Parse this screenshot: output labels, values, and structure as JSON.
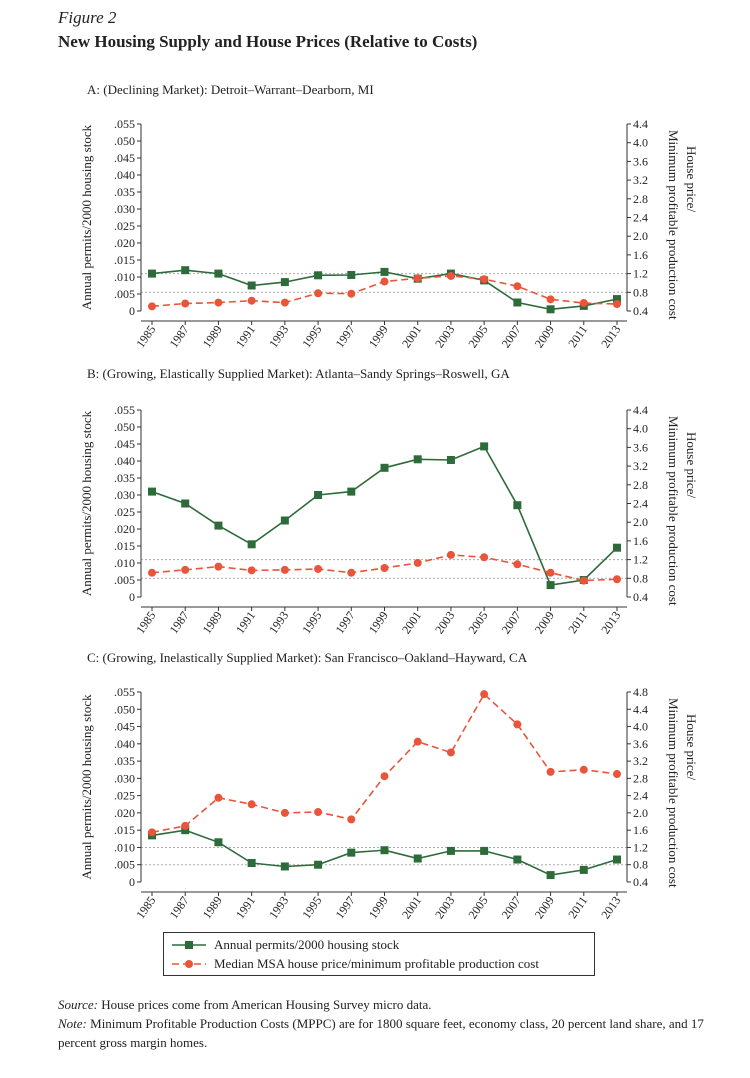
{
  "figure_label": "Figure 2",
  "title": "New Housing Supply and House Prices (Relative to Costs)",
  "colors": {
    "permits": "#2e6b3a",
    "price": "#e8553a",
    "reference": "#aaaaaa"
  },
  "legend": {
    "permits": "Annual permits/2000 housing stock",
    "price": "Median MSA house price/minimum profitable production cost"
  },
  "source_label": "Source:",
  "source_text": "House prices come from American Housing Survey micro data.",
  "note_label": "Note:",
  "note_text": "Minimum Profitable Production Costs (MPPC) are for 1800 square feet, economy class, 20 percent land share, and 17 percent gross margin homes.",
  "chart_data": [
    {
      "type": "line",
      "panel_title": "A: (Declining Market): Detroit–Warrant–Dearborn, MI",
      "ylabel_left": "Annual permits/2000 housing stock",
      "ylabel_right": "House price/Minimum profitable production cost",
      "x": [
        "1985",
        "1987",
        "1989",
        "1991",
        "1993",
        "1995",
        "1997",
        "1999",
        "2001",
        "2003",
        "2005",
        "2007",
        "2009",
        "2011",
        "2013"
      ],
      "yticks_left": [
        "0",
        ".005",
        ".010",
        ".015",
        ".020",
        ".025",
        ".030",
        ".035",
        ".040",
        ".045",
        ".050",
        ".055"
      ],
      "yticks_right": [
        "0.4",
        "0.8",
        "1.2",
        "1.6",
        "2.0",
        "2.4",
        "2.8",
        "3.2",
        "3.6",
        "4.0",
        "4.4"
      ],
      "ylim_left": [
        0,
        0.055
      ],
      "ylim_right": [
        0.4,
        4.4
      ],
      "reference_lines_right": [
        0.8,
        1.2
      ],
      "series": [
        {
          "name": "Annual permits/2000 housing stock",
          "axis": "left",
          "values": [
            0.011,
            0.012,
            0.011,
            0.0075,
            0.0085,
            0.0105,
            0.0106,
            0.0115,
            0.0095,
            0.011,
            0.009,
            0.0025,
            0.0005,
            0.0015,
            0.0035
          ]
        },
        {
          "name": "Median MSA house price/minimum profitable production cost",
          "axis": "right",
          "values": [
            0.5,
            0.56,
            0.58,
            0.62,
            0.58,
            0.78,
            0.77,
            1.03,
            1.1,
            1.15,
            1.08,
            0.93,
            0.65,
            0.57,
            0.55
          ]
        }
      ]
    },
    {
      "type": "line",
      "panel_title": "B: (Growing, Elastically Supplied Market): Atlanta–Sandy Springs–Roswell, GA",
      "ylabel_left": "Annual permits/2000 housing stock",
      "ylabel_right": "House price/Minimum profitable production cost",
      "x": [
        "1985",
        "1987",
        "1989",
        "1991",
        "1993",
        "1995",
        "1997",
        "1999",
        "2001",
        "2003",
        "2005",
        "2007",
        "2009",
        "2011",
        "2013"
      ],
      "yticks_left": [
        "0",
        ".005",
        ".010",
        ".015",
        ".020",
        ".025",
        ".030",
        ".035",
        ".040",
        ".045",
        ".050",
        ".055"
      ],
      "yticks_right": [
        "0.4",
        "0.8",
        "1.2",
        "1.6",
        "2.0",
        "2.4",
        "2.8",
        "3.2",
        "3.6",
        "4.0",
        "4.4"
      ],
      "ylim_left": [
        0,
        0.055
      ],
      "ylim_right": [
        0.4,
        4.4
      ],
      "reference_lines_right": [
        0.8,
        1.2
      ],
      "series": [
        {
          "name": "Annual permits/2000 housing stock",
          "axis": "left",
          "values": [
            0.031,
            0.0275,
            0.021,
            0.0155,
            0.0225,
            0.03,
            0.031,
            0.038,
            0.0405,
            0.0403,
            0.0443,
            0.027,
            0.0035,
            0.005,
            0.0145
          ]
        },
        {
          "name": "Median MSA house price/minimum profitable production cost",
          "axis": "right",
          "values": [
            0.92,
            0.98,
            1.05,
            0.97,
            0.98,
            1.0,
            0.92,
            1.02,
            1.13,
            1.3,
            1.25,
            1.1,
            0.92,
            0.75,
            0.78
          ]
        }
      ]
    },
    {
      "type": "line",
      "panel_title": "C: (Growing, Inelastically Supplied Market): San Francisco–Oakland–Hayward, CA",
      "ylabel_left": "Annual permits/2000 housing stock",
      "ylabel_right": "House price/Minimum profitable production cost",
      "x": [
        "1985",
        "1987",
        "1989",
        "1991",
        "1993",
        "1995",
        "1997",
        "1999",
        "2001",
        "2003",
        "2005",
        "2007",
        "2009",
        "2011",
        "2013"
      ],
      "yticks_left": [
        "0",
        ".005",
        ".010",
        ".015",
        ".020",
        ".025",
        ".030",
        ".035",
        ".040",
        ".045",
        ".050",
        ".055"
      ],
      "yticks_right": [
        "0.4",
        "0.8",
        "1.2",
        "1.6",
        "2.0",
        "2.4",
        "2.8",
        "3.2",
        "3.6",
        "4.0",
        "4.4",
        "4.8"
      ],
      "ylim_left": [
        0,
        0.055
      ],
      "ylim_right": [
        0.4,
        4.8
      ],
      "reference_lines_right": [
        0.8,
        1.2
      ],
      "series": [
        {
          "name": "Annual permits/2000 housing stock",
          "axis": "left",
          "values": [
            0.0135,
            0.015,
            0.0115,
            0.0055,
            0.0045,
            0.005,
            0.0085,
            0.0092,
            0.0068,
            0.009,
            0.009,
            0.0065,
            0.002,
            0.0035,
            0.0065
          ]
        },
        {
          "name": "Median MSA house price/minimum profitable production cost",
          "axis": "right",
          "values": [
            1.55,
            1.7,
            2.35,
            2.2,
            2.0,
            2.02,
            1.85,
            2.85,
            3.65,
            3.4,
            4.75,
            4.05,
            2.95,
            3.0,
            2.9
          ]
        }
      ]
    }
  ]
}
